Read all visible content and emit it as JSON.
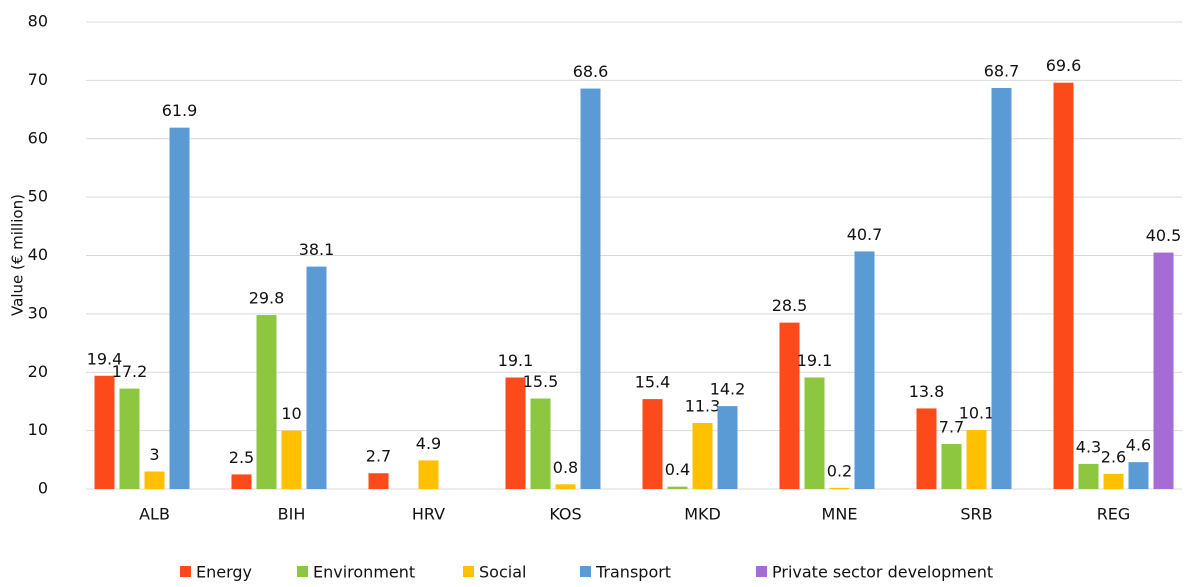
{
  "chart_data": {
    "type": "bar",
    "y_label": "Value (€ million)",
    "categories": [
      "ALB",
      "BIH",
      "HRV",
      "KOS",
      "MKD",
      "MNE",
      "SRB",
      "REG"
    ],
    "series": [
      {
        "name": "Energy",
        "color": "#fc4a1a",
        "values": [
          19.4,
          2.5,
          2.7,
          19.1,
          15.4,
          28.5,
          13.8,
          69.6
        ]
      },
      {
        "name": "Environment",
        "color": "#8dc63f",
        "values": [
          17.2,
          29.8,
          null,
          15.5,
          0.4,
          19.1,
          7.7,
          4.3
        ]
      },
      {
        "name": "Social",
        "color": "#ffc000",
        "values": [
          3,
          10,
          4.9,
          0.8,
          11.3,
          0.2,
          10.1,
          2.6
        ]
      },
      {
        "name": "Transport",
        "color": "#5b9bd5",
        "values": [
          61.9,
          38.1,
          null,
          68.6,
          14.2,
          40.7,
          68.7,
          4.6
        ]
      },
      {
        "name": "Private sector development",
        "color": "#a56cd6",
        "values": [
          null,
          null,
          null,
          null,
          null,
          null,
          null,
          40.5
        ]
      }
    ],
    "ylim": [
      0,
      80
    ],
    "yticks": [
      0,
      10,
      20,
      30,
      40,
      50,
      60,
      70,
      80
    ],
    "grid": true,
    "legend": "bottom"
  }
}
